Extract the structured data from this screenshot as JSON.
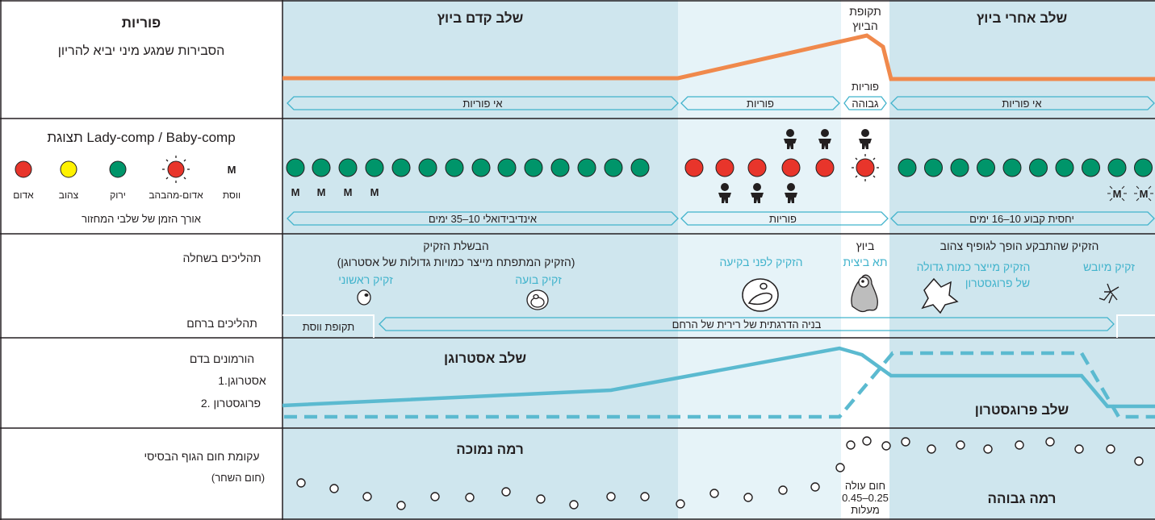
{
  "colors": {
    "phase_blue": "#cfe6ee",
    "phase_light": "#e6f3f8",
    "ovulation_white": "#ffffff",
    "orange": "#f0894c",
    "hormone_blue": "#5bbad0",
    "green": "#00956a",
    "red": "#e8352b",
    "yellow": "#fff200",
    "text_blue": "#41b3cc",
    "grid": "#231f20"
  },
  "fertility_row": {
    "title": "פוריות",
    "subtitle": "הסבירות שמגע מיני יביא להריון",
    "phase_pre": "שלב קדם ביוץ",
    "phase_ovulation_line1": "תקופת",
    "phase_ovulation_line2": "הביוץ",
    "phase_post": "שלב אחרי ביוץ",
    "high_fertility_line1": "פוריות",
    "high_fertility_line2": "גבוהה",
    "bands": [
      "אי פוריות",
      "פוריות",
      "גבוהה",
      "אי פוריות"
    ]
  },
  "display_row": {
    "title": "תצוגת Lady-comp / Baby-comp",
    "legend": {
      "red": "אדום",
      "yellow": "צהוב",
      "green": "ירוק",
      "red_flashing": "אדום-מהבהב",
      "menses": "ווסת",
      "menses_symbol": "M"
    },
    "cycle_length_label": "אורך הזמן של שלבי המחזור",
    "lights": [
      "green",
      "green",
      "green",
      "green",
      "green",
      "green",
      "green",
      "green",
      "green",
      "green",
      "green",
      "green",
      "green",
      "green",
      "red",
      "red",
      "red",
      "red",
      "red",
      "red-flashing",
      "green",
      "green",
      "green",
      "green",
      "green",
      "green",
      "green",
      "green",
      "green",
      "green"
    ],
    "menses_marks": 4,
    "bands": [
      "אינדיבידואלי 10–35 ימים",
      "פוריות",
      "יחסית קבוע 10–16 ימים"
    ]
  },
  "ovary_row": {
    "title": "תהליכים בשחלה",
    "follicle_phase": "הבשלת הזקיק",
    "follicle_phase_note": "(הזקיק המתפתח מייצר כמויות גדולות של אסטרוגן)",
    "primary_follicle": "זקיק ראשוני",
    "bubble_follicle": "זקיק בועה",
    "pre_rupture_follicle": "הזקיק לפני בקיעה",
    "ovulation": "ביוץ",
    "egg_cell": "תא ביצית",
    "corpus_luteum_title": "הזקיק שהתבקע הופך לגופיף צהוב",
    "follicle_progesterone_1": "הזקיק מייצר כמות גדולה",
    "follicle_progesterone_2": "של פרוגסטרון",
    "dried_follicle": "זקיק מיובש"
  },
  "uterus_row": {
    "title": "תהליכים ברחם",
    "menses_period": "תקופת ווסת",
    "lining_buildup": "בניה הדרגתית של רירית של הרחם"
  },
  "hormone_row": {
    "title": "הורמונים בדם",
    "item1": "1.אסטרוגן",
    "item2": "2. פרוגסטרון",
    "estrogen_phase": "שלב אסטרוגן",
    "progesterone_phase": "שלב פרוגסטרון"
  },
  "temperature_row": {
    "title": "עקומת חום הגוף הבסיסי",
    "subtitle": "(חום השחר)",
    "low_level": "רמה נמוכה",
    "high_level": "רמה גבוהה",
    "rise_line1": "חום עולה",
    "rise_line2": "0.45–0.25",
    "rise_line3": "מעלות"
  }
}
